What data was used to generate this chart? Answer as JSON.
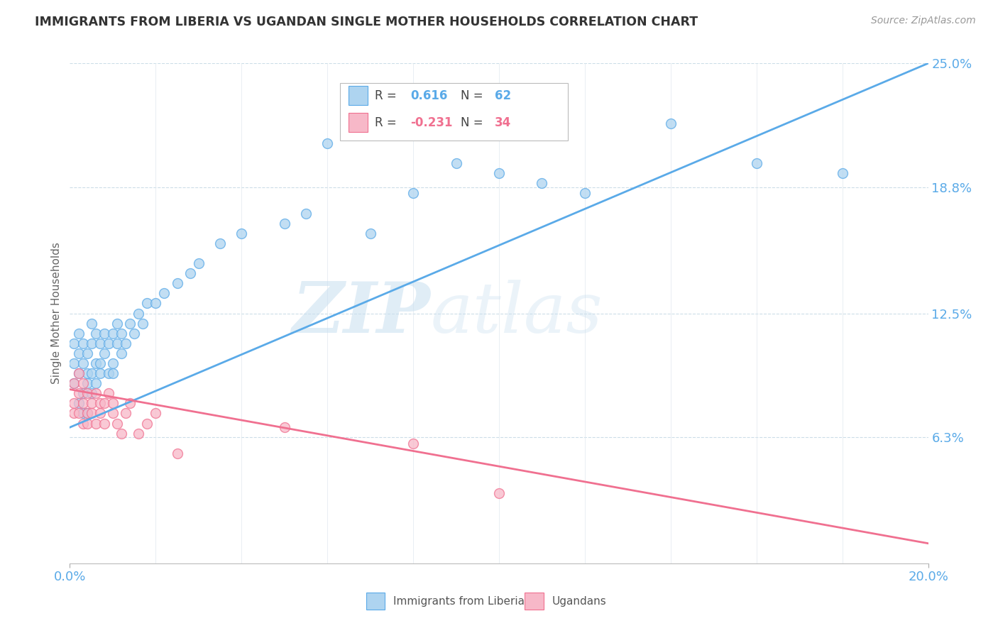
{
  "title": "IMMIGRANTS FROM LIBERIA VS UGANDAN SINGLE MOTHER HOUSEHOLDS CORRELATION CHART",
  "source": "Source: ZipAtlas.com",
  "ylabel": "Single Mother Households",
  "xmin": 0.0,
  "xmax": 0.2,
  "ymin": 0.0,
  "ymax": 0.25,
  "yticks_right": [
    0.063,
    0.125,
    0.188,
    0.25
  ],
  "ytick_right_labels": [
    "6.3%",
    "12.5%",
    "18.8%",
    "25.0%"
  ],
  "blue_R": 0.616,
  "blue_N": 62,
  "pink_R": -0.231,
  "pink_N": 34,
  "blue_color": "#AED4F0",
  "pink_color": "#F7B8C8",
  "blue_line_color": "#5AAAE8",
  "pink_line_color": "#F07090",
  "legend_label_blue": "Immigrants from Liberia",
  "legend_label_pink": "Ugandans",
  "watermark_zip": "ZIP",
  "watermark_atlas": "atlas",
  "blue_line_x": [
    0.0,
    0.2
  ],
  "blue_line_y": [
    0.068,
    0.25
  ],
  "pink_line_x": [
    0.0,
    0.2
  ],
  "pink_line_y": [
    0.087,
    0.01
  ],
  "blue_scatter_x": [
    0.001,
    0.001,
    0.001,
    0.002,
    0.002,
    0.002,
    0.002,
    0.003,
    0.003,
    0.003,
    0.003,
    0.004,
    0.004,
    0.004,
    0.004,
    0.005,
    0.005,
    0.005,
    0.005,
    0.006,
    0.006,
    0.006,
    0.007,
    0.007,
    0.007,
    0.008,
    0.008,
    0.009,
    0.009,
    0.01,
    0.01,
    0.01,
    0.011,
    0.011,
    0.012,
    0.012,
    0.013,
    0.014,
    0.015,
    0.016,
    0.017,
    0.018,
    0.02,
    0.022,
    0.025,
    0.028,
    0.03,
    0.035,
    0.04,
    0.05,
    0.055,
    0.06,
    0.065,
    0.07,
    0.08,
    0.09,
    0.1,
    0.11,
    0.12,
    0.14,
    0.16,
    0.18
  ],
  "blue_scatter_y": [
    0.09,
    0.1,
    0.11,
    0.095,
    0.105,
    0.115,
    0.08,
    0.085,
    0.1,
    0.11,
    0.075,
    0.09,
    0.105,
    0.095,
    0.075,
    0.095,
    0.11,
    0.085,
    0.12,
    0.1,
    0.09,
    0.115,
    0.1,
    0.11,
    0.095,
    0.105,
    0.115,
    0.095,
    0.11,
    0.1,
    0.115,
    0.095,
    0.11,
    0.12,
    0.105,
    0.115,
    0.11,
    0.12,
    0.115,
    0.125,
    0.12,
    0.13,
    0.13,
    0.135,
    0.14,
    0.145,
    0.15,
    0.16,
    0.165,
    0.17,
    0.175,
    0.21,
    0.215,
    0.165,
    0.185,
    0.2,
    0.195,
    0.19,
    0.185,
    0.22,
    0.2,
    0.195
  ],
  "pink_scatter_x": [
    0.001,
    0.001,
    0.001,
    0.002,
    0.002,
    0.002,
    0.003,
    0.003,
    0.003,
    0.004,
    0.004,
    0.004,
    0.005,
    0.005,
    0.006,
    0.006,
    0.007,
    0.007,
    0.008,
    0.008,
    0.009,
    0.01,
    0.01,
    0.011,
    0.012,
    0.013,
    0.014,
    0.016,
    0.018,
    0.02,
    0.025,
    0.05,
    0.08,
    0.1
  ],
  "pink_scatter_y": [
    0.09,
    0.08,
    0.075,
    0.085,
    0.075,
    0.095,
    0.08,
    0.07,
    0.09,
    0.075,
    0.07,
    0.085,
    0.075,
    0.08,
    0.085,
    0.07,
    0.08,
    0.075,
    0.07,
    0.08,
    0.085,
    0.075,
    0.08,
    0.07,
    0.065,
    0.075,
    0.08,
    0.065,
    0.07,
    0.075,
    0.055,
    0.068,
    0.06,
    0.035
  ]
}
